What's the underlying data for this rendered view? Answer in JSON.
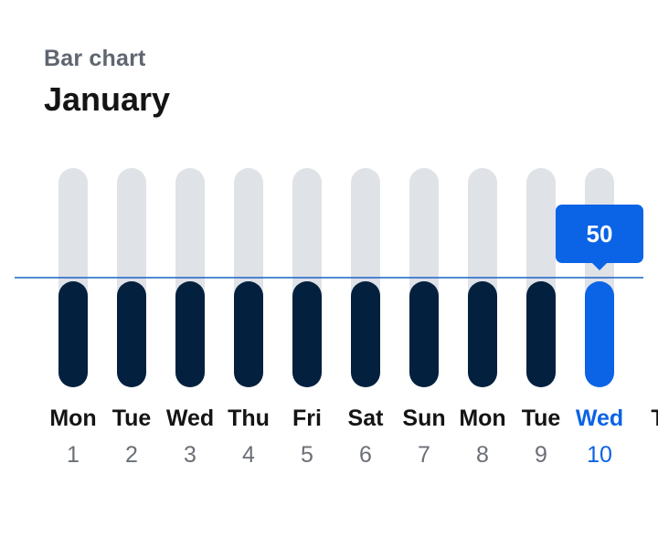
{
  "header": {
    "subtitle": "Bar chart",
    "title": "January"
  },
  "colors": {
    "track": "#dfe2e7",
    "bar": "#04203f",
    "bar_selected": "#0b63e5",
    "reference_line": "#1a62c9",
    "day_label": "#141414",
    "date_label": "#6b6f76",
    "selected_label": "#0b63e5",
    "tooltip_text": "#ffffff"
  },
  "tooltip": {
    "value": "50"
  },
  "chart_data": {
    "type": "bar",
    "title": "",
    "xlabel": "",
    "ylabel": "",
    "ylim": [
      0,
      100
    ],
    "reference_line": 50,
    "selected_index": 9,
    "categories": [
      {
        "day": "Mon",
        "date": "1"
      },
      {
        "day": "Tue",
        "date": "2"
      },
      {
        "day": "Wed",
        "date": "3"
      },
      {
        "day": "Thu",
        "date": "4"
      },
      {
        "day": "Fri",
        "date": "5"
      },
      {
        "day": "Sat",
        "date": "6"
      },
      {
        "day": "Sun",
        "date": "7"
      },
      {
        "day": "Mon",
        "date": "8"
      },
      {
        "day": "Tue",
        "date": "9"
      },
      {
        "day": "Wed",
        "date": "10"
      },
      {
        "day": "T",
        "date": ""
      }
    ],
    "values": [
      50,
      50,
      50,
      50,
      50,
      50,
      50,
      50,
      50,
      50,
      null
    ]
  }
}
